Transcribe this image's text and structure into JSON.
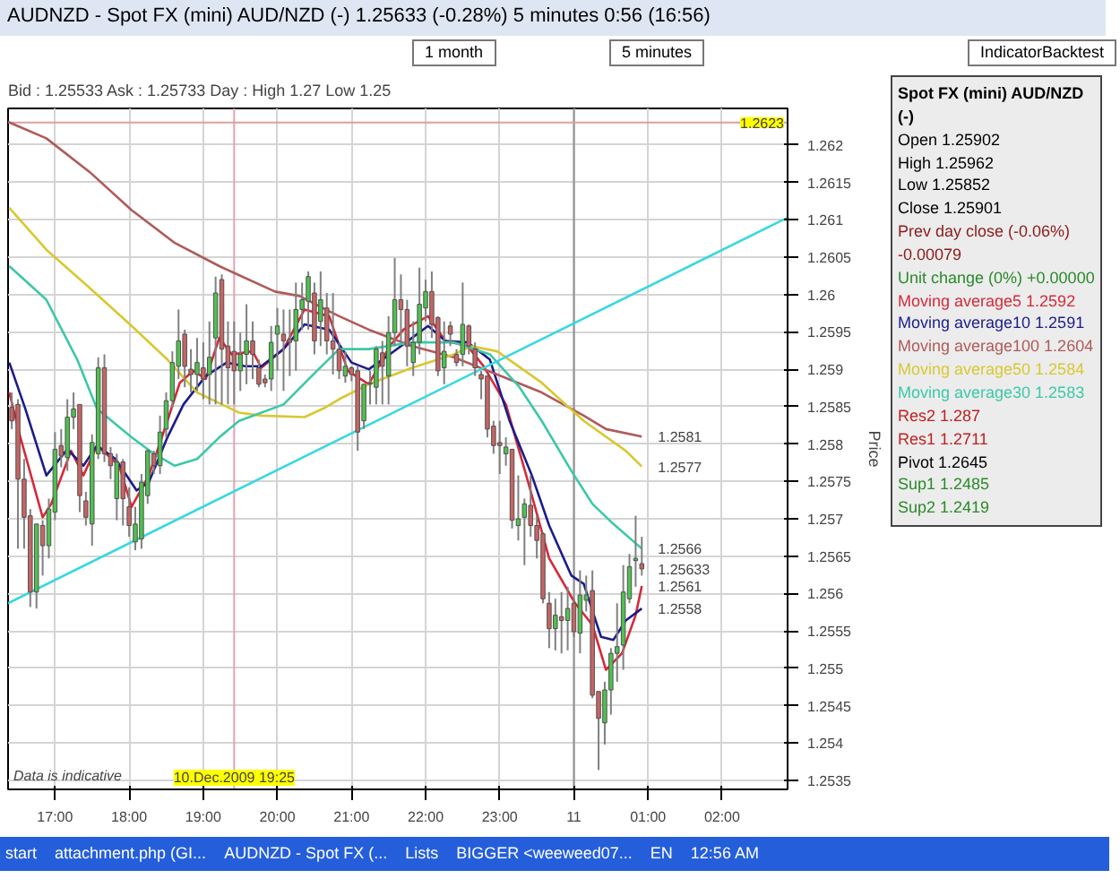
{
  "chart_data": {
    "type": "candlestick",
    "title": "AUDNZD - Spot FX (mini) AUD/NZD (-)   1.25633 (-0.28%)   5 minutes  0:56 (16:56)",
    "subtitle": "Bid : 1.25533 Ask : 1.25733 Day : High 1.27 Low 1.25",
    "ylabel": "Price",
    "x": [
      "2009-12-10T16:25",
      "2009-12-10T16:30",
      "2009-12-10T16:35",
      "2009-12-10T16:40",
      "2009-12-10T16:45",
      "2009-12-10T16:50",
      "2009-12-10T16:55",
      "2009-12-10T17:00",
      "2009-12-10T17:05",
      "2009-12-10T17:10",
      "2009-12-10T17:15",
      "2009-12-10T17:20",
      "2009-12-10T17:25",
      "2009-12-10T17:30",
      "2009-12-10T17:35",
      "2009-12-10T17:40",
      "2009-12-10T17:45",
      "2009-12-10T17:50",
      "2009-12-10T17:55",
      "2009-12-10T18:00",
      "2009-12-10T18:05",
      "2009-12-10T18:10",
      "2009-12-10T18:15",
      "2009-12-10T18:20",
      "2009-12-10T18:25",
      "2009-12-10T18:30",
      "2009-12-10T18:35",
      "2009-12-10T18:40",
      "2009-12-10T18:45",
      "2009-12-10T18:50",
      "2009-12-10T18:55",
      "2009-12-10T19:00",
      "2009-12-10T19:05",
      "2009-12-10T19:10",
      "2009-12-10T19:15",
      "2009-12-10T19:20",
      "2009-12-10T19:25",
      "2009-12-10T19:30",
      "2009-12-10T19:35",
      "2009-12-10T19:40",
      "2009-12-10T19:45",
      "2009-12-10T19:50",
      "2009-12-10T19:55",
      "2009-12-10T20:00",
      "2009-12-10T20:05",
      "2009-12-10T20:10",
      "2009-12-10T20:15",
      "2009-12-10T20:20",
      "2009-12-10T20:25",
      "2009-12-10T20:30",
      "2009-12-10T20:35",
      "2009-12-10T20:40",
      "2009-12-10T20:45",
      "2009-12-10T20:50",
      "2009-12-10T20:55",
      "2009-12-10T21:00",
      "2009-12-10T21:05",
      "2009-12-10T21:10",
      "2009-12-10T21:15",
      "2009-12-10T21:20",
      "2009-12-10T21:25",
      "2009-12-10T21:30",
      "2009-12-10T21:35",
      "2009-12-10T21:40",
      "2009-12-10T21:45",
      "2009-12-10T21:50",
      "2009-12-10T21:55",
      "2009-12-10T22:00",
      "2009-12-10T22:05",
      "2009-12-10T22:10",
      "2009-12-10T22:15",
      "2009-12-10T22:20",
      "2009-12-10T22:25",
      "2009-12-10T22:30",
      "2009-12-10T22:35",
      "2009-12-10T22:40",
      "2009-12-10T22:45",
      "2009-12-10T22:50",
      "2009-12-10T22:55",
      "2009-12-10T23:00",
      "2009-12-10T23:05",
      "2009-12-10T23:10",
      "2009-12-10T23:15",
      "2009-12-10T23:20",
      "2009-12-10T23:25",
      "2009-12-10T23:30",
      "2009-12-10T23:35",
      "2009-12-10T23:40",
      "2009-12-10T23:45",
      "2009-12-10T23:50",
      "2009-12-10T23:55",
      "2009-12-11T00:00",
      "2009-12-11T00:05",
      "2009-12-11T00:10",
      "2009-12-11T00:15",
      "2009-12-11T00:20",
      "2009-12-11T00:25",
      "2009-12-11T00:30",
      "2009-12-11T00:35",
      "2009-12-11T00:40",
      "2009-12-11T00:45",
      "2009-12-11T00:50",
      "2009-12-11T00:55"
    ],
    "ohlc": [
      [
        1.25849,
        1.25869,
        1.2582,
        1.25831
      ],
      [
        1.25853,
        1.2586,
        1.2566,
        1.25753
      ],
      [
        1.25753,
        1.2578,
        1.2566,
        1.25702
      ],
      [
        1.25704,
        1.25713,
        1.25582,
        1.25602
      ],
      [
        1.25602,
        1.25693,
        1.2558,
        1.25693
      ],
      [
        1.25691,
        1.25698,
        1.25624,
        1.25664
      ],
      [
        1.25664,
        1.25727,
        1.25647,
        1.25713
      ],
      [
        1.25709,
        1.25816,
        1.25698,
        1.25793
      ],
      [
        1.25798,
        1.2582,
        1.25769,
        1.25784
      ],
      [
        1.25782,
        1.2586,
        1.25764,
        1.25836
      ],
      [
        1.25836,
        1.25869,
        1.2582,
        1.25847
      ],
      [
        1.25853,
        1.25853,
        1.25709,
        1.25731
      ],
      [
        1.25724,
        1.25736,
        1.25691,
        1.25702
      ],
      [
        1.25693,
        1.25813,
        1.25664,
        1.25802
      ],
      [
        1.25787,
        1.25916,
        1.2578,
        1.25902
      ],
      [
        1.25902,
        1.2592,
        1.25776,
        1.25787
      ],
      [
        1.25787,
        1.25796,
        1.25753,
        1.25771
      ],
      [
        1.25727,
        1.25787,
        1.25698,
        1.25776
      ],
      [
        1.25776,
        1.2578,
        1.25691,
        1.25727
      ],
      [
        1.25716,
        1.25742,
        1.25676,
        1.25691
      ],
      [
        1.25669,
        1.25716,
        1.25658,
        1.25693
      ],
      [
        1.25673,
        1.2576,
        1.2566,
        1.25749
      ],
      [
        1.25731,
        1.25793,
        1.2572,
        1.25791
      ],
      [
        1.25787,
        1.25791,
        1.2576,
        1.25771
      ],
      [
        1.25771,
        1.25838,
        1.2576,
        1.25816
      ],
      [
        1.2582,
        1.25869,
        1.25809,
        1.25858
      ],
      [
        1.25858,
        1.25924,
        1.25849,
        1.25909
      ],
      [
        1.25904,
        1.2598,
        1.25887,
        1.25938
      ],
      [
        1.25947,
        1.25953,
        1.25876,
        1.25904
      ],
      [
        1.259,
        1.25927,
        1.25869,
        1.25893
      ],
      [
        1.25893,
        1.25942,
        1.25871,
        1.25909
      ],
      [
        1.25902,
        1.25936,
        1.2586,
        1.25887
      ],
      [
        1.25893,
        1.25964,
        1.25853,
        1.25916
      ],
      [
        1.25942,
        1.26024,
        1.25853,
        1.26002
      ],
      [
        1.2602,
        1.26027,
        1.25853,
        1.25927
      ],
      [
        1.25931,
        1.25964,
        1.25853,
        1.25902
      ],
      [
        1.25924,
        1.25964,
        1.25853,
        1.25898
      ],
      [
        1.25898,
        1.25949,
        1.25871,
        1.2592
      ],
      [
        1.2592,
        1.25987,
        1.2588,
        1.25938
      ],
      [
        1.25938,
        1.25964,
        1.25887,
        1.2592
      ],
      [
        1.25902,
        1.25913,
        1.25876,
        1.2588
      ],
      [
        1.25887,
        1.25893,
        1.25876,
        1.25882
      ],
      [
        1.25887,
        1.25958,
        1.25871,
        1.25936
      ],
      [
        1.25947,
        1.25982,
        1.25898,
        1.25958
      ],
      [
        1.25947,
        1.2598,
        1.25871,
        1.25938
      ],
      [
        1.2594,
        1.2598,
        1.25891,
        1.25936
      ],
      [
        1.25938,
        1.26016,
        1.25898,
        1.2598
      ],
      [
        1.2598,
        1.26016,
        1.25953,
        1.25993
      ],
      [
        1.25991,
        1.26031,
        1.25953,
        1.26024
      ],
      [
        1.26002,
        1.26016,
        1.2592,
        1.25938
      ],
      [
        1.25964,
        1.26031,
        1.25931,
        1.25993
      ],
      [
        1.25982,
        1.26002,
        1.2592,
        1.25938
      ],
      [
        1.25938,
        1.26002,
        1.25893,
        1.25927
      ],
      [
        1.25927,
        1.25936,
        1.25887,
        1.25898
      ],
      [
        1.25891,
        1.25924,
        1.25882,
        1.25904
      ],
      [
        1.25902,
        1.25904,
        1.25884,
        1.25893
      ],
      [
        1.25898,
        1.25904,
        1.25791,
        1.25816
      ],
      [
        1.25831,
        1.2588,
        1.2582,
        1.2588
      ],
      [
        1.25882,
        1.25898,
        1.25853,
        1.2588
      ],
      [
        1.25876,
        1.25931,
        1.25853,
        1.25927
      ],
      [
        1.25922,
        1.25938,
        1.25853,
        1.25904
      ],
      [
        1.25891,
        1.25971,
        1.25853,
        1.25949
      ],
      [
        1.25949,
        1.26049,
        1.25931,
        1.25993
      ],
      [
        1.25993,
        1.26027,
        1.25938,
        1.2598
      ],
      [
        1.2598,
        1.25993,
        1.25904,
        1.25931
      ],
      [
        1.25909,
        1.25964,
        1.25891,
        1.25936
      ],
      [
        1.25936,
        1.26036,
        1.2592,
        1.25987
      ],
      [
        1.25982,
        1.2602,
        1.25964,
        1.26004
      ],
      [
        1.26004,
        1.26031,
        1.25942,
        1.2596
      ],
      [
        1.25969,
        1.25971,
        1.25891,
        1.25898
      ],
      [
        1.25902,
        1.25964,
        1.2588,
        1.25924
      ],
      [
        1.25958,
        1.25964,
        1.25931,
        1.25947
      ],
      [
        1.2592,
        1.25927,
        1.25904,
        1.25909
      ],
      [
        1.2592,
        1.26016,
        1.25904,
        1.2596
      ],
      [
        1.25958,
        1.2596,
        1.2592,
        1.25931
      ],
      [
        1.25927,
        1.25936,
        1.25891,
        1.25902
      ],
      [
        1.25893,
        1.25898,
        1.2586,
        1.25887
      ],
      [
        1.25891,
        1.25891,
        1.25809,
        1.2582
      ],
      [
        1.25824,
        1.25831,
        1.25787,
        1.25798
      ],
      [
        1.25802,
        1.25831,
        1.2576,
        1.25798
      ],
      [
        1.25787,
        1.25809,
        1.25771,
        1.25796
      ],
      [
        1.25793,
        1.25793,
        1.25687,
        1.25698
      ],
      [
        1.25691,
        1.25758,
        1.25671,
        1.257
      ],
      [
        1.25702,
        1.25727,
        1.25638,
        1.2572
      ],
      [
        1.25718,
        1.25758,
        1.25676,
        1.25691
      ],
      [
        1.25691,
        1.25704,
        1.25647,
        1.25671
      ],
      [
        1.2568,
        1.25682,
        1.25587,
        1.25593
      ],
      [
        1.25587,
        1.25602,
        1.25527,
        1.25553
      ],
      [
        1.25553,
        1.25593,
        1.25524,
        1.25571
      ],
      [
        1.25569,
        1.25602,
        1.2552,
        1.25564
      ],
      [
        1.25564,
        1.25609,
        1.25524,
        1.2558
      ],
      [
        1.25587,
        1.25593,
        1.25542,
        1.25549
      ],
      [
        1.25547,
        1.25631,
        1.2552,
        1.25598
      ],
      [
        1.25591,
        1.25624,
        1.25576,
        1.25598
      ],
      [
        1.25604,
        1.25631,
        1.2546,
        1.25464
      ],
      [
        1.25469,
        1.25469,
        1.25364,
        1.25433
      ],
      [
        1.25427,
        1.25482,
        1.25398,
        1.25471
      ],
      [
        1.25471,
        1.25527,
        1.25438,
        1.2552
      ],
      [
        1.2552,
        1.25587,
        1.25482,
        1.25529
      ],
      [
        1.25531,
        1.25638,
        1.25498,
        1.25602
      ],
      [
        1.25593,
        1.25653,
        1.25587,
        1.25636
      ],
      [
        1.25644,
        1.25704,
        1.25609,
        1.25647
      ],
      [
        1.2564,
        1.25676,
        1.25624,
        1.25633
      ]
    ],
    "series": [
      {
        "type": "line",
        "name": "Moving average5",
        "color": "#d42a3a",
        "x": [
          "2009-12-10T16:23",
          "2009-12-10T16:32",
          "2009-12-10T16:50",
          "2009-12-10T16:57",
          "2009-12-10T17:13",
          "2009-12-10T17:23",
          "2009-12-10T17:34",
          "2009-12-10T17:52",
          "2009-12-10T18:02",
          "2009-12-10T18:16",
          "2009-12-10T18:31",
          "2009-12-10T18:41",
          "2009-12-10T18:52",
          "2009-12-10T19:02",
          "2009-12-10T19:13",
          "2009-12-10T19:23",
          "2009-12-10T19:40",
          "2009-12-10T19:47",
          "2009-12-10T20:05",
          "2009-12-10T20:22",
          "2009-12-10T20:42",
          "2009-12-10T20:57",
          "2009-12-10T21:14",
          "2009-12-10T21:31",
          "2009-12-10T21:42",
          "2009-12-10T22:02",
          "2009-12-10T22:16",
          "2009-12-10T22:34",
          "2009-12-10T22:47",
          "2009-12-10T23:05",
          "2009-12-10T23:23",
          "2009-12-10T23:40",
          "2009-12-11T00:01",
          "2009-12-11T00:15",
          "2009-12-11T00:26",
          "2009-12-11T00:39",
          "2009-12-11T00:50",
          "2009-12-11T00:55"
        ],
        "values": [
          1.25869,
          1.25809,
          1.25702,
          1.2572,
          1.25791,
          1.25758,
          1.25798,
          1.25771,
          1.25716,
          1.25758,
          1.25831,
          1.25882,
          1.25898,
          1.25887,
          1.25942,
          1.2592,
          1.25924,
          1.25902,
          1.25927,
          1.2598,
          1.25971,
          1.25898,
          1.2588,
          1.25931,
          1.25953,
          1.25971,
          1.25938,
          1.25931,
          1.25904,
          1.25853,
          1.25749,
          1.25647,
          1.25587,
          1.25558,
          1.25498,
          1.2552,
          1.25571,
          1.2561
        ]
      },
      {
        "type": "line",
        "name": "Moving average10",
        "color": "#1c1c8a",
        "x": [
          "2009-12-10T16:23",
          "2009-12-10T16:36",
          "2009-12-10T16:53",
          "2009-12-10T17:10",
          "2009-12-10T17:23",
          "2009-12-10T17:34",
          "2009-12-10T17:49",
          "2009-12-10T18:06",
          "2009-12-10T18:16",
          "2009-12-10T18:31",
          "2009-12-10T18:44",
          "2009-12-10T19:02",
          "2009-12-10T19:19",
          "2009-12-10T19:34",
          "2009-12-10T19:47",
          "2009-12-10T20:05",
          "2009-12-10T20:22",
          "2009-12-10T20:42",
          "2009-12-10T21:00",
          "2009-12-10T21:14",
          "2009-12-10T21:31",
          "2009-12-10T21:49",
          "2009-12-10T22:02",
          "2009-12-10T22:16",
          "2009-12-10T22:34",
          "2009-12-10T22:52",
          "2009-12-10T23:08",
          "2009-12-10T23:26",
          "2009-12-10T23:40",
          "2009-12-10T23:58",
          "2009-12-11T00:08",
          "2009-12-11T00:22",
          "2009-12-11T00:32",
          "2009-12-11T00:42",
          "2009-12-11T00:55"
        ],
        "values": [
          1.25909,
          1.25847,
          1.25758,
          1.25793,
          1.25771,
          1.25798,
          1.2578,
          1.25738,
          1.25749,
          1.25809,
          1.25853,
          1.25891,
          1.25909,
          1.25904,
          1.25904,
          1.25927,
          1.2596,
          1.25953,
          1.25909,
          1.259,
          1.2592,
          1.25942,
          1.25958,
          1.25938,
          1.25936,
          1.25913,
          1.25831,
          1.25758,
          1.25691,
          1.25624,
          1.25613,
          1.25542,
          1.25538,
          1.25564,
          1.2558
        ]
      },
      {
        "type": "line",
        "name": "Moving average100",
        "color": "#b05a5a",
        "x": [
          "2009-12-10T16:22",
          "2009-12-10T16:53",
          "2009-12-10T17:28",
          "2009-12-10T18:02",
          "2009-12-10T18:37",
          "2009-12-10T19:13",
          "2009-12-10T19:58",
          "2009-12-10T20:18",
          "2009-12-10T20:39",
          "2009-12-10T20:50",
          "2009-12-10T21:14",
          "2009-12-10T21:49",
          "2009-12-10T22:23",
          "2009-12-10T22:58",
          "2009-12-10T23:34",
          "2009-12-11T00:08",
          "2009-12-11T00:26",
          "2009-12-11T00:55"
        ],
        "values": [
          1.26231,
          1.26209,
          1.26164,
          1.26113,
          1.26069,
          1.26038,
          1.26004,
          1.25998,
          1.2598,
          1.25971,
          1.25953,
          1.25931,
          1.25916,
          1.25893,
          1.25869,
          1.25838,
          1.2582,
          1.2581
        ]
      },
      {
        "type": "line",
        "name": "Moving average50",
        "color": "#d8c830",
        "x": [
          "2009-12-10T16:23",
          "2009-12-10T16:53",
          "2009-12-10T17:28",
          "2009-12-10T18:02",
          "2009-12-10T18:31",
          "2009-12-10T18:55",
          "2009-12-10T19:29",
          "2009-12-10T19:47",
          "2009-12-10T20:22",
          "2009-12-10T20:39",
          "2009-12-10T20:50",
          "2009-12-10T21:14",
          "2009-12-10T21:49",
          "2009-12-10T22:23",
          "2009-12-10T22:37",
          "2009-12-10T22:58",
          "2009-12-10T23:34",
          "2009-12-11T00:08",
          "2009-12-11T00:42",
          "2009-12-11T00:55"
        ],
        "values": [
          1.26116,
          1.2606,
          1.26009,
          1.25958,
          1.25913,
          1.25869,
          1.25842,
          1.25838,
          1.25836,
          1.25849,
          1.2586,
          1.2588,
          1.25902,
          1.2592,
          1.25931,
          1.25924,
          1.25882,
          1.25831,
          1.25791,
          1.2577
        ]
      },
      {
        "type": "line",
        "name": "Moving average30",
        "color": "#3cc8a8",
        "x": [
          "2009-12-10T16:23",
          "2009-12-10T16:53",
          "2009-12-10T17:18",
          "2009-12-10T17:34",
          "2009-12-10T18:02",
          "2009-12-10T18:20",
          "2009-12-10T18:37",
          "2009-12-10T18:55",
          "2009-12-10T19:13",
          "2009-12-10T19:29",
          "2009-12-10T20:05",
          "2009-12-10T20:32",
          "2009-12-10T20:50",
          "2009-12-10T21:14",
          "2009-12-10T21:49",
          "2009-12-10T22:23",
          "2009-12-10T22:52",
          "2009-12-10T23:16",
          "2009-12-10T23:34",
          "2009-12-10T23:58",
          "2009-12-11T00:15",
          "2009-12-11T00:32",
          "2009-12-11T00:55"
        ],
        "values": [
          1.26038,
          1.25993,
          1.25913,
          1.25847,
          1.25809,
          1.25787,
          1.25771,
          1.2578,
          1.25809,
          1.25831,
          1.25853,
          1.25898,
          1.25927,
          1.25927,
          1.25936,
          1.25936,
          1.2592,
          1.25876,
          1.25831,
          1.25764,
          1.2572,
          1.25693,
          1.2566
        ]
      },
      {
        "type": "line",
        "color": "#38d8e0",
        "x": [
          "2009-12-10T16:22",
          "2009-12-11T02:53"
        ],
        "values": [
          1.25587,
          1.26103
        ]
      }
    ],
    "xlim": [
      "2009-12-10T16:22",
      "2009-12-11T02:53"
    ],
    "xticks": [
      {
        "value": "2009-12-10T17:00",
        "label": "17:00"
      },
      {
        "value": "2009-12-10T18:00",
        "label": "18:00"
      },
      {
        "value": "2009-12-10T19:00",
        "label": "19:00"
      },
      {
        "value": "2009-12-10T20:00",
        "label": "20:00"
      },
      {
        "value": "2009-12-10T21:00",
        "label": "21:00"
      },
      {
        "value": "2009-12-10T22:00",
        "label": "22:00"
      },
      {
        "value": "2009-12-10T23:00",
        "label": "23:00"
      },
      {
        "value": "2009-12-11T00:00",
        "label": "11"
      },
      {
        "value": "2009-12-11T01:00",
        "label": "01:00"
      },
      {
        "value": "2009-12-11T02:00",
        "label": "02:00"
      }
    ],
    "ylim": [
      1.25338,
      1.26249
    ],
    "yticks": [
      1.2535,
      1.254,
      1.2545,
      1.255,
      1.2555,
      1.256,
      1.2565,
      1.257,
      1.2575,
      1.258,
      1.2585,
      1.259,
      1.2595,
      1.26,
      1.2605,
      1.261,
      1.2615,
      1.262
    ],
    "grid": true,
    "ref_lines": [
      {
        "axis": "x",
        "value": "2009-12-10T19:25",
        "label": "10.Dec.2009 19:25",
        "color": "#e8a0b0"
      },
      {
        "axis": "x",
        "value": "2009-12-11T00:00",
        "color": "#909090"
      },
      {
        "axis": "y",
        "value": 1.2623,
        "label": "1.2623",
        "color": "#d8a0a0"
      }
    ],
    "annotations": [
      "1 month",
      "5 minutes",
      "IndicatorBacktest",
      "Spot FX (mini) AUD/NZD (-)",
      "Open 1.25902",
      "High 1.25962",
      "Low 1.25852",
      "Close 1.25901",
      "Prev day close (-0.06%) -0.00079",
      "Unit change (0%) +0.00000",
      "1.2592",
      "1.2591",
      "1.2604",
      "1.2584",
      "1.2583",
      "Res2 1.287",
      "Res1 1.2711",
      "Pivot 1.2645",
      "Sup1 1.2485",
      "Sup2 1.2419",
      "Data is indicative",
      "start",
      "attachment.php (GI...",
      "AUDNZD - Spot FX (...",
      "Lists",
      "BIGGER <weeweed07...",
      "EN",
      "12:56 AM",
      {
        "text": "1.2581",
        "x": "2009-12-11T00:55",
        "y": 1.2581
      },
      {
        "text": "1.2577",
        "x": "2009-12-11T00:55",
        "y": 1.2577
      },
      {
        "text": "1.2566",
        "x": "2009-12-11T00:55",
        "y": 1.2566
      },
      {
        "text": "1.25633",
        "x": "2009-12-11T00:55",
        "y": 1.25633
      },
      {
        "text": "1.2561",
        "x": "2009-12-11T00:55",
        "y": 1.2561
      },
      {
        "text": "1.2558",
        "x": "2009-12-11T00:55",
        "y": 1.2558
      }
    ]
  }
}
